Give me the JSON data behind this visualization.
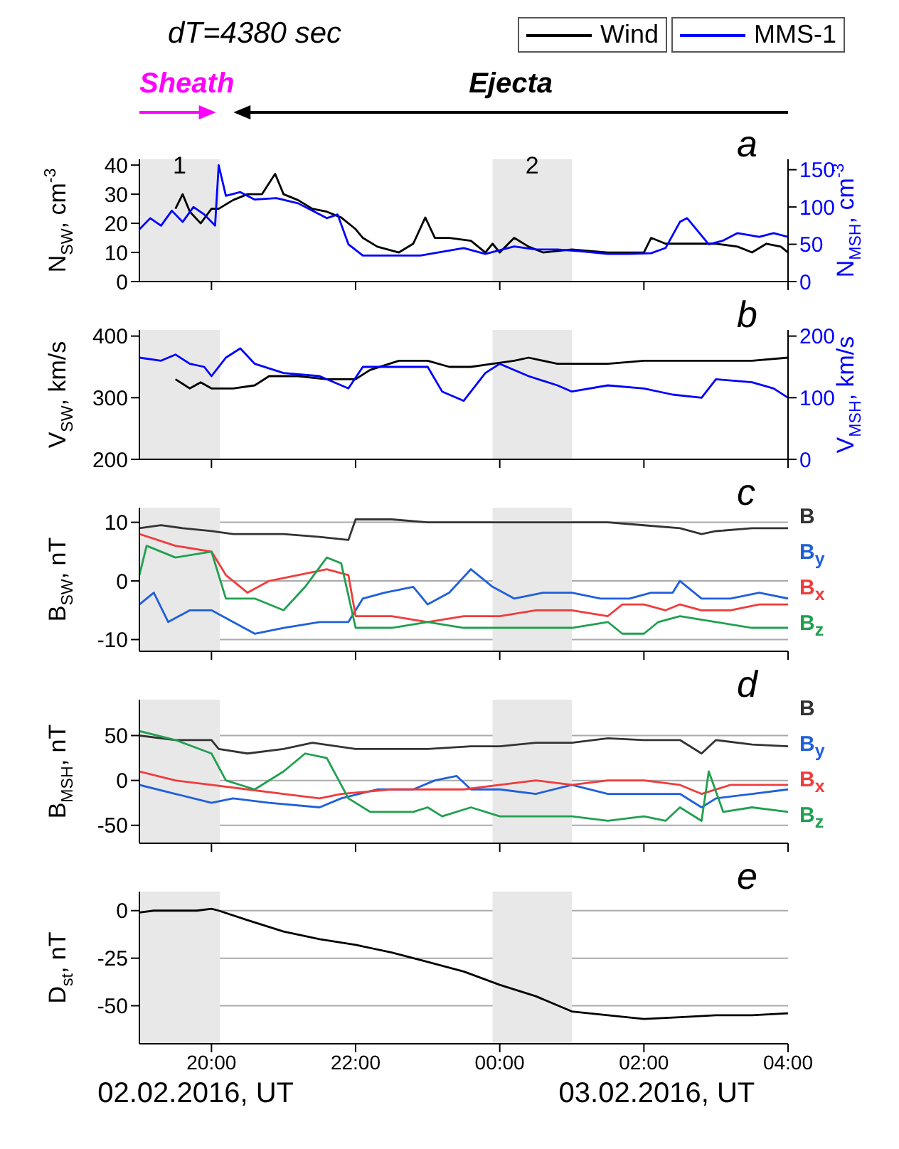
{
  "chart_data": [
    {
      "type": "line",
      "title": "dT=4380 sec",
      "ylabel": "N$_{SW}$, cm$^{-3}$",
      "y2label": "N$_{MSH}$, cm$^{-3}$",
      "xlim": [
        "2016-02-02T19:00",
        "2016-02-03T04:00"
      ],
      "xticks": [
        {
          "value": "2016-02-02T20:00",
          "label": null
        },
        {
          "value": "2016-02-02T22:00",
          "label": null
        },
        {
          "value": "2016-02-03T00:00",
          "label": null
        },
        {
          "value": "2016-02-03T02:00",
          "label": null
        },
        {
          "value": "2016-02-03T04:00",
          "label": null
        }
      ],
      "ylim": [
        0,
        42
      ],
      "yticks": [
        0,
        10,
        20,
        30,
        40
      ],
      "y2lim": [
        0,
        164
      ],
      "y2ticks": [
        0,
        50,
        100,
        150
      ],
      "tick_labels": "y",
      "legend": "top right",
      "annotations": [
        "a",
        "Sheath",
        "Ejecta"
      ],
      "bands": [
        {
          "axis": "x",
          "from": "2016-02-02T19:00",
          "to": "2016-02-02T20:07",
          "label": "1",
          "color": "#e8e8e8"
        },
        {
          "axis": "x",
          "from": "2016-02-02T23:54",
          "to": "2016-02-03T01:00",
          "label": "2",
          "color": "#e8e8e8"
        }
      ],
      "series": [
        {
          "name": "Wind",
          "color": "#000000",
          "x": [
            "2016-02-02T19:30",
            "2016-02-02T19:36",
            "2016-02-02T19:42",
            "2016-02-02T19:51",
            "2016-02-02T20:00",
            "2016-02-02T20:06",
            "2016-02-02T20:18",
            "2016-02-02T20:30",
            "2016-02-02T20:42",
            "2016-02-02T20:53",
            "2016-02-02T21:00",
            "2016-02-02T21:12",
            "2016-02-02T21:24",
            "2016-02-02T21:36",
            "2016-02-02T21:48",
            "2016-02-02T22:00",
            "2016-02-02T22:06",
            "2016-02-02T22:18",
            "2016-02-02T22:36",
            "2016-02-02T22:48",
            "2016-02-02T22:58",
            "2016-02-02T23:06",
            "2016-02-02T23:18",
            "2016-02-02T23:36",
            "2016-02-02T23:48",
            "2016-02-02T23:54",
            "2016-02-03T00:00",
            "2016-02-03T00:12",
            "2016-02-03T00:24",
            "2016-02-03T00:36",
            "2016-02-03T01:00",
            "2016-02-03T01:30",
            "2016-02-03T02:00",
            "2016-02-03T02:06",
            "2016-02-03T02:18",
            "2016-02-03T02:48",
            "2016-02-03T03:00",
            "2016-02-03T03:18",
            "2016-02-03T03:30",
            "2016-02-03T03:42",
            "2016-02-03T03:54",
            "2016-02-03T04:00"
          ],
          "values": [
            25,
            30,
            24,
            20,
            25,
            25,
            28,
            30,
            30,
            37,
            30,
            28,
            25,
            24,
            22,
            18,
            15,
            12,
            10,
            13,
            22,
            15,
            15,
            14,
            10,
            13,
            10,
            15,
            12,
            10,
            11,
            10,
            10,
            15,
            13,
            13,
            13,
            12,
            10,
            13,
            12,
            10
          ]
        },
        {
          "name": "MMS-1",
          "color": "#0000ff",
          "axis": "y2",
          "x": [
            "2016-02-02T19:00",
            "2016-02-02T19:09",
            "2016-02-02T19:18",
            "2016-02-02T19:27",
            "2016-02-02T19:36",
            "2016-02-02T19:45",
            "2016-02-02T19:54",
            "2016-02-02T20:03",
            "2016-02-02T20:06",
            "2016-02-02T20:12",
            "2016-02-02T20:24",
            "2016-02-02T20:36",
            "2016-02-02T20:54",
            "2016-02-02T21:12",
            "2016-02-02T21:24",
            "2016-02-02T21:36",
            "2016-02-02T21:45",
            "2016-02-02T21:54",
            "2016-02-02T22:06",
            "2016-02-02T22:30",
            "2016-02-02T22:54",
            "2016-02-02T23:12",
            "2016-02-02T23:30",
            "2016-02-02T23:48",
            "2016-02-03T00:12",
            "2016-02-03T00:30",
            "2016-02-03T00:48",
            "2016-02-03T01:12",
            "2016-02-03T01:30",
            "2016-02-03T01:48",
            "2016-02-03T02:06",
            "2016-02-03T02:18",
            "2016-02-03T02:30",
            "2016-02-03T02:36",
            "2016-02-03T02:54",
            "2016-02-03T03:06",
            "2016-02-03T03:18",
            "2016-02-03T03:36",
            "2016-02-03T03:48",
            "2016-02-03T04:00"
          ],
          "values": [
            70,
            85,
            75,
            95,
            80,
            100,
            90,
            75,
            156,
            115,
            120,
            110,
            112,
            105,
            95,
            85,
            90,
            50,
            35,
            35,
            35,
            40,
            45,
            37,
            47,
            43,
            43,
            40,
            37,
            37,
            38,
            45,
            80,
            85,
            50,
            55,
            65,
            60,
            65,
            60
          ]
        }
      ]
    },
    {
      "type": "line",
      "ylabel": "V$_{SW}$, km/s",
      "y2label": "V$_{MSH}$, km/s",
      "xlim": [
        "2016-02-02T19:00",
        "2016-02-03T04:00"
      ],
      "xticks": [
        {
          "value": "2016-02-02T20:00",
          "label": null
        },
        {
          "value": "2016-02-02T22:00",
          "label": null
        },
        {
          "value": "2016-02-03T00:00",
          "label": null
        },
        {
          "value": "2016-02-03T02:00",
          "label": null
        },
        {
          "value": "2016-02-03T04:00",
          "label": null
        }
      ],
      "ylim": [
        200,
        410
      ],
      "yticks": [
        200,
        300,
        400
      ],
      "y2lim": [
        0,
        210
      ],
      "y2ticks": [
        0,
        100,
        200
      ],
      "tick_labels": "y",
      "annotations": [
        "b"
      ],
      "bands": [
        {
          "axis": "x",
          "from": "2016-02-02T19:00",
          "to": "2016-02-02T20:07",
          "color": "#e8e8e8"
        },
        {
          "axis": "x",
          "from": "2016-02-02T23:54",
          "to": "2016-02-03T01:00",
          "color": "#e8e8e8"
        }
      ],
      "series": [
        {
          "color": "#000000",
          "x": [
            "2016-02-02T19:30",
            "2016-02-02T19:42",
            "2016-02-02T19:51",
            "2016-02-02T20:00",
            "2016-02-02T20:18",
            "2016-02-02T20:36",
            "2016-02-02T20:48",
            "2016-02-02T21:12",
            "2016-02-02T21:36",
            "2016-02-02T22:00",
            "2016-02-02T22:12",
            "2016-02-02T22:36",
            "2016-02-02T23:00",
            "2016-02-02T23:18",
            "2016-02-02T23:36",
            "2016-02-02T23:54",
            "2016-02-03T00:12",
            "2016-02-03T00:24",
            "2016-02-03T00:48",
            "2016-02-03T01:30",
            "2016-02-03T02:00",
            "2016-02-03T02:30",
            "2016-02-03T03:00",
            "2016-02-03T03:30",
            "2016-02-03T04:00"
          ],
          "values": [
            330,
            315,
            325,
            315,
            315,
            320,
            335,
            335,
            330,
            330,
            345,
            360,
            360,
            350,
            350,
            355,
            360,
            365,
            355,
            355,
            360,
            360,
            360,
            360,
            365
          ]
        },
        {
          "color": "#0000ff",
          "axis": "y2",
          "x": [
            "2016-02-02T19:00",
            "2016-02-02T19:18",
            "2016-02-02T19:30",
            "2016-02-02T19:42",
            "2016-02-02T19:54",
            "2016-02-02T20:00",
            "2016-02-02T20:12",
            "2016-02-02T20:24",
            "2016-02-02T20:36",
            "2016-02-02T21:00",
            "2016-02-02T21:30",
            "2016-02-02T21:54",
            "2016-02-02T22:06",
            "2016-02-02T22:30",
            "2016-02-02T23:00",
            "2016-02-02T23:12",
            "2016-02-02T23:30",
            "2016-02-02T23:48",
            "2016-02-03T00:00",
            "2016-02-03T00:24",
            "2016-02-03T00:48",
            "2016-02-03T01:00",
            "2016-02-03T01:30",
            "2016-02-03T02:00",
            "2016-02-03T02:24",
            "2016-02-03T02:48",
            "2016-02-03T03:00",
            "2016-02-03T03:30",
            "2016-02-03T03:48",
            "2016-02-03T04:00"
          ],
          "values": [
            165,
            160,
            170,
            155,
            150,
            135,
            165,
            180,
            155,
            140,
            135,
            115,
            150,
            150,
            150,
            110,
            95,
            140,
            155,
            135,
            120,
            110,
            120,
            115,
            105,
            100,
            130,
            125,
            115,
            100
          ]
        }
      ]
    },
    {
      "type": "line",
      "ylabel": "B$_{SW}$, nT",
      "xlim": [
        "2016-02-02T19:00",
        "2016-02-03T04:00"
      ],
      "xticks": [
        {
          "value": "2016-02-02T20:00",
          "label": null
        },
        {
          "value": "2016-02-02T22:00",
          "label": null
        },
        {
          "value": "2016-02-03T00:00",
          "label": null
        },
        {
          "value": "2016-02-03T02:00",
          "label": null
        },
        {
          "value": "2016-02-03T04:00",
          "label": null
        }
      ],
      "ylim": [
        -12,
        12.5
      ],
      "yticks": [
        -10,
        0,
        10
      ],
      "grid": "y",
      "tick_labels": "y",
      "annotations": [
        "c"
      ],
      "bands": [
        {
          "axis": "x",
          "from": "2016-02-02T19:00",
          "to": "2016-02-02T20:07",
          "color": "#e8e8e8"
        },
        {
          "axis": "x",
          "from": "2016-02-02T23:54",
          "to": "2016-02-03T01:00",
          "color": "#e8e8e8"
        }
      ],
      "series": [
        {
          "name": "B",
          "color": "#333333",
          "x": [
            "2016-02-02T19:00",
            "2016-02-02T19:18",
            "2016-02-02T19:36",
            "2016-02-02T20:00",
            "2016-02-02T20:18",
            "2016-02-02T20:42",
            "2016-02-02T21:00",
            "2016-02-02T21:30",
            "2016-02-02T21:54",
            "2016-02-02T22:00",
            "2016-02-02T22:30",
            "2016-02-02T23:00",
            "2016-02-02T23:30",
            "2016-02-03T00:00",
            "2016-02-03T00:30",
            "2016-02-03T01:00",
            "2016-02-03T01:30",
            "2016-02-03T02:00",
            "2016-02-03T02:30",
            "2016-02-03T02:48",
            "2016-02-03T03:00",
            "2016-02-03T03:30",
            "2016-02-03T04:00"
          ],
          "values": [
            9,
            9.5,
            9,
            8.5,
            8,
            8,
            8,
            7.5,
            7,
            10.5,
            10.5,
            10,
            10,
            10,
            10,
            10,
            10,
            9.5,
            9,
            8,
            8.5,
            9,
            9
          ]
        },
        {
          "name": "B$_{y}$",
          "color": "#1f5fdc",
          "x": [
            "2016-02-02T19:00",
            "2016-02-02T19:12",
            "2016-02-02T19:24",
            "2016-02-02T19:42",
            "2016-02-02T20:00",
            "2016-02-02T20:18",
            "2016-02-02T20:36",
            "2016-02-02T21:00",
            "2016-02-02T21:30",
            "2016-02-02T21:54",
            "2016-02-02T22:06",
            "2016-02-02T22:24",
            "2016-02-02T22:48",
            "2016-02-02T23:00",
            "2016-02-02T23:18",
            "2016-02-02T23:36",
            "2016-02-02T23:54",
            "2016-02-03T00:12",
            "2016-02-03T00:36",
            "2016-02-03T01:00",
            "2016-02-03T01:24",
            "2016-02-03T01:48",
            "2016-02-03T02:06",
            "2016-02-03T02:24",
            "2016-02-03T02:30",
            "2016-02-03T02:48",
            "2016-02-03T03:12",
            "2016-02-03T03:36",
            "2016-02-03T04:00"
          ],
          "values": [
            -4,
            -2,
            -7,
            -5,
            -5,
            -7,
            -9,
            -8,
            -7,
            -7,
            -3,
            -2,
            -1,
            -4,
            -2,
            2,
            -1,
            -3,
            -2,
            -2,
            -3,
            -3,
            -2,
            -2,
            0,
            -3,
            -3,
            -2,
            -3
          ]
        },
        {
          "name": "B$_{x}$",
          "color": "#f03c3c",
          "x": [
            "2016-02-02T19:00",
            "2016-02-02T19:30",
            "2016-02-02T20:00",
            "2016-02-02T20:12",
            "2016-02-02T20:30",
            "2016-02-02T20:48",
            "2016-02-02T21:12",
            "2016-02-02T21:36",
            "2016-02-02T21:54",
            "2016-02-02T22:00",
            "2016-02-02T22:30",
            "2016-02-02T23:00",
            "2016-02-02T23:30",
            "2016-02-03T00:00",
            "2016-02-03T00:30",
            "2016-02-03T01:00",
            "2016-02-03T01:30",
            "2016-02-03T01:42",
            "2016-02-03T02:00",
            "2016-02-03T02:18",
            "2016-02-03T02:30",
            "2016-02-03T02:48",
            "2016-02-03T03:12",
            "2016-02-03T03:36",
            "2016-02-03T04:00"
          ],
          "values": [
            8,
            6,
            5,
            1,
            -2,
            0,
            1,
            2,
            1,
            -6,
            -6,
            -7,
            -6,
            -6,
            -5,
            -5,
            -6,
            -4,
            -4,
            -5,
            -4,
            -5,
            -5,
            -4,
            -4
          ]
        },
        {
          "name": "B$_{z}$",
          "color": "#20a050",
          "x": [
            "2016-02-02T19:00",
            "2016-02-02T19:06",
            "2016-02-02T19:30",
            "2016-02-02T20:00",
            "2016-02-02T20:12",
            "2016-02-02T20:36",
            "2016-02-02T21:00",
            "2016-02-02T21:18",
            "2016-02-02T21:36",
            "2016-02-02T21:48",
            "2016-02-02T22:00",
            "2016-02-02T22:30",
            "2016-02-02T23:00",
            "2016-02-02T23:30",
            "2016-02-03T00:00",
            "2016-02-03T00:30",
            "2016-02-03T01:00",
            "2016-02-03T01:30",
            "2016-02-03T01:42",
            "2016-02-03T02:00",
            "2016-02-03T02:12",
            "2016-02-03T02:30",
            "2016-02-03T03:00",
            "2016-02-03T03:30",
            "2016-02-03T04:00"
          ],
          "values": [
            1,
            6,
            4,
            5,
            -3,
            -3,
            -5,
            -1,
            4,
            3,
            -8,
            -8,
            -7,
            -8,
            -8,
            -8,
            -8,
            -7,
            -9,
            -9,
            -7,
            -6,
            -7,
            -8,
            -8
          ]
        }
      ]
    },
    {
      "type": "line",
      "ylabel": "B$_{MSH}$, nT",
      "xlim": [
        "2016-02-02T19:00",
        "2016-02-03T04:00"
      ],
      "xticks": [
        {
          "value": "2016-02-02T20:00",
          "label": null
        },
        {
          "value": "2016-02-02T22:00",
          "label": null
        },
        {
          "value": "2016-02-03T00:00",
          "label": null
        },
        {
          "value": "2016-02-03T02:00",
          "label": null
        },
        {
          "value": "2016-02-03T04:00",
          "label": null
        }
      ],
      "ylim": [
        -70,
        90
      ],
      "yticks": [
        -50,
        0,
        50
      ],
      "grid": "y",
      "tick_labels": "y",
      "annotations": [
        "d"
      ],
      "bands": [
        {
          "axis": "x",
          "from": "2016-02-02T19:00",
          "to": "2016-02-02T20:07",
          "color": "#e8e8e8"
        },
        {
          "axis": "x",
          "from": "2016-02-02T23:54",
          "to": "2016-02-03T01:00",
          "color": "#e8e8e8"
        }
      ],
      "series": [
        {
          "name": "B",
          "color": "#333333",
          "x": [
            "2016-02-02T19:00",
            "2016-02-02T19:30",
            "2016-02-02T20:00",
            "2016-02-02T20:06",
            "2016-02-02T20:30",
            "2016-02-02T21:00",
            "2016-02-02T21:24",
            "2016-02-02T22:00",
            "2016-02-02T23:00",
            "2016-02-02T23:36",
            "2016-02-03T00:00",
            "2016-02-03T00:30",
            "2016-02-03T01:00",
            "2016-02-03T01:30",
            "2016-02-03T02:00",
            "2016-02-03T02:30",
            "2016-02-03T02:48",
            "2016-02-03T03:00",
            "2016-02-03T03:30",
            "2016-02-03T04:00"
          ],
          "values": [
            50,
            45,
            45,
            35,
            30,
            35,
            42,
            35,
            35,
            38,
            38,
            42,
            42,
            47,
            45,
            45,
            30,
            45,
            40,
            38
          ]
        },
        {
          "name": "B$_{y}$",
          "color": "#1f5fdc",
          "x": [
            "2016-02-02T19:00",
            "2016-02-02T19:30",
            "2016-02-02T20:00",
            "2016-02-02T20:18",
            "2016-02-02T20:48",
            "2016-02-02T21:30",
            "2016-02-02T21:48",
            "2016-02-02T22:18",
            "2016-02-02T22:48",
            "2016-02-02T23:06",
            "2016-02-02T23:24",
            "2016-02-02T23:36",
            "2016-02-03T00:00",
            "2016-02-03T00:30",
            "2016-02-03T01:00",
            "2016-02-03T01:30",
            "2016-02-03T02:00",
            "2016-02-03T02:30",
            "2016-02-03T02:48",
            "2016-02-03T03:00",
            "2016-02-03T03:30",
            "2016-02-03T04:00"
          ],
          "values": [
            -5,
            -15,
            -25,
            -20,
            -25,
            -30,
            -20,
            -10,
            -10,
            0,
            5,
            -10,
            -10,
            -15,
            -5,
            -15,
            -15,
            -15,
            -30,
            -20,
            -15,
            -10
          ]
        },
        {
          "name": "B$_{x}$",
          "color": "#f03c3c",
          "x": [
            "2016-02-02T19:00",
            "2016-02-02T19:30",
            "2016-02-02T20:00",
            "2016-02-02T20:30",
            "2016-02-02T21:00",
            "2016-02-02T21:30",
            "2016-02-02T21:48",
            "2016-02-02T22:30",
            "2016-02-02T23:00",
            "2016-02-02T23:30",
            "2016-02-03T00:00",
            "2016-02-03T00:30",
            "2016-02-03T01:00",
            "2016-02-03T01:30",
            "2016-02-03T02:00",
            "2016-02-03T02:30",
            "2016-02-03T02:48",
            "2016-02-03T03:12",
            "2016-02-03T04:00"
          ],
          "values": [
            10,
            0,
            -5,
            -10,
            -15,
            -20,
            -15,
            -10,
            -10,
            -10,
            -5,
            0,
            -5,
            0,
            0,
            -5,
            -15,
            -5,
            -5
          ]
        },
        {
          "name": "B$_{z}$",
          "color": "#20a050",
          "x": [
            "2016-02-02T19:00",
            "2016-02-02T19:30",
            "2016-02-02T20:00",
            "2016-02-02T20:12",
            "2016-02-02T20:36",
            "2016-02-02T21:00",
            "2016-02-02T21:18",
            "2016-02-02T21:36",
            "2016-02-02T21:54",
            "2016-02-02T22:12",
            "2016-02-02T22:48",
            "2016-02-02T23:00",
            "2016-02-02T23:12",
            "2016-02-02T23:36",
            "2016-02-03T00:00",
            "2016-02-03T00:30",
            "2016-02-03T01:00",
            "2016-02-03T01:30",
            "2016-02-03T02:00",
            "2016-02-03T02:18",
            "2016-02-03T02:30",
            "2016-02-03T02:48",
            "2016-02-03T02:54",
            "2016-02-03T03:06",
            "2016-02-03T03:30",
            "2016-02-03T04:00"
          ],
          "values": [
            55,
            45,
            30,
            0,
            -10,
            10,
            30,
            25,
            -20,
            -35,
            -35,
            -30,
            -40,
            -30,
            -40,
            -40,
            -40,
            -45,
            -40,
            -45,
            -30,
            -45,
            10,
            -35,
            -30,
            -35
          ]
        }
      ]
    },
    {
      "type": "line",
      "ylabel": "D$_{st}$, nT",
      "xlabel": "02.02.2016, UT",
      "xlim": [
        "2016-02-02T19:00",
        "2016-02-03T04:00"
      ],
      "xticks": [
        {
          "value": "2016-02-02T20:00",
          "label": "20:00"
        },
        {
          "value": "2016-02-02T22:00",
          "label": "22:00"
        },
        {
          "value": "2016-02-03T00:00",
          "label": "00:00"
        },
        {
          "value": "2016-02-03T02:00",
          "label": "02:00"
        },
        {
          "value": "2016-02-03T04:00",
          "label": "04:00"
        }
      ],
      "ylim": [
        -70,
        10
      ],
      "yticks": [
        -50,
        -25,
        0
      ],
      "grid": "y",
      "annotations": [
        "e",
        "03.02.2016, UT"
      ],
      "bands": [
        {
          "axis": "x",
          "from": "2016-02-02T19:00",
          "to": "2016-02-02T20:07",
          "color": "#e8e8e8"
        },
        {
          "axis": "x",
          "from": "2016-02-02T23:54",
          "to": "2016-02-03T01:00",
          "color": "#e8e8e8"
        }
      ],
      "series": [
        {
          "color": "#000000",
          "x": [
            "2016-02-02T19:00",
            "2016-02-02T19:12",
            "2016-02-02T19:48",
            "2016-02-02T20:00",
            "2016-02-02T20:06",
            "2016-02-02T20:30",
            "2016-02-02T21:00",
            "2016-02-02T21:30",
            "2016-02-02T22:00",
            "2016-02-02T22:30",
            "2016-02-02T23:00",
            "2016-02-02T23:30",
            "2016-02-03T00:00",
            "2016-02-03T00:30",
            "2016-02-03T01:00",
            "2016-02-03T01:30",
            "2016-02-03T02:00",
            "2016-02-03T02:30",
            "2016-02-03T03:00",
            "2016-02-03T03:30",
            "2016-02-03T04:00"
          ],
          "values": [
            -1,
            0,
            0,
            1,
            0,
            -5,
            -11,
            -15,
            -18,
            -22,
            -27,
            -32,
            -39,
            -45,
            -53,
            -55,
            -57,
            -56,
            -55,
            -55,
            -54
          ]
        }
      ]
    }
  ]
}
